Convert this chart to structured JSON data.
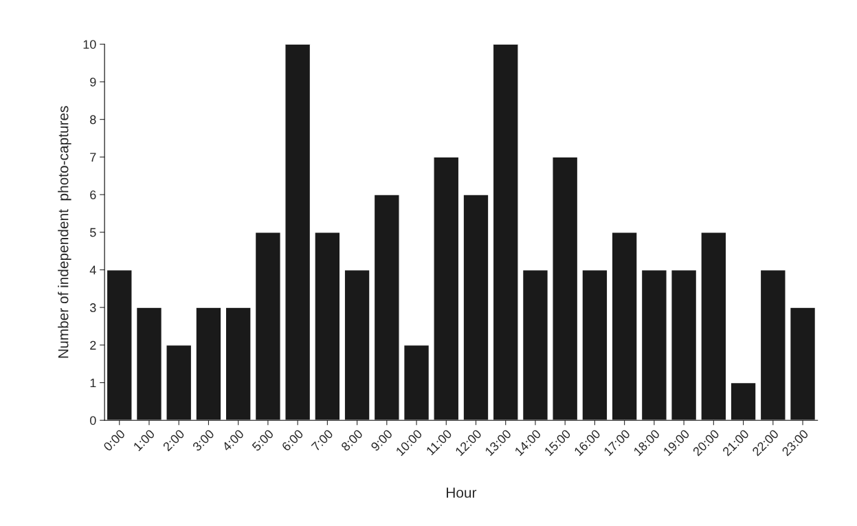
{
  "chart_data": {
    "type": "bar",
    "xlabel": "Hour",
    "ylabel": "Number of independent  photo-captures",
    "categories": [
      "0:00",
      "1:00",
      "2:00",
      "3:00",
      "4:00",
      "5:00",
      "6:00",
      "7:00",
      "8:00",
      "9:00",
      "10:00",
      "11:00",
      "12:00",
      "13:00",
      "14:00",
      "15:00",
      "16:00",
      "17:00",
      "18:00",
      "19:00",
      "20:00",
      "21:00",
      "22:00",
      "23:00"
    ],
    "values": [
      4,
      3,
      2,
      3,
      3,
      5,
      10,
      5,
      4,
      6,
      2,
      7,
      6,
      10,
      4,
      7,
      4,
      5,
      4,
      4,
      5,
      1,
      4,
      3
    ],
    "color": "#1a1a1a",
    "ylim": [
      0,
      10
    ],
    "yticks": [
      0,
      1,
      2,
      3,
      4,
      5,
      6,
      7,
      8,
      9,
      10
    ],
    "grid": false,
    "legend": false
  }
}
